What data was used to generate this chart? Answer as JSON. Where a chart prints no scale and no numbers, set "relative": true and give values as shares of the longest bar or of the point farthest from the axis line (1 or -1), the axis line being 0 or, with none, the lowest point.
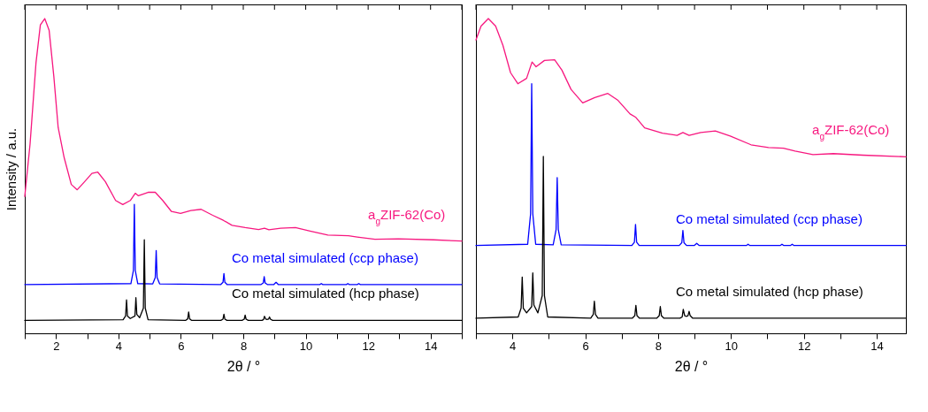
{
  "chart_data": [
    {
      "type": "line",
      "relative": true,
      "xlim": [
        1,
        15
      ],
      "xticks": [
        {
          "value": 1,
          "label": null
        },
        2,
        {
          "value": 3,
          "label": null
        },
        4,
        {
          "value": 5,
          "label": null
        },
        6,
        {
          "value": 7,
          "label": null
        },
        8,
        {
          "value": 9,
          "label": null
        },
        10,
        {
          "value": 11,
          "label": null
        },
        12,
        {
          "value": 13,
          "label": null
        },
        14,
        {
          "value": 15,
          "label": null
        }
      ],
      "xlabel": "2θ / °",
      "ylabel": "Intensity / a.u.",
      "tick_labels": "x",
      "grid": false,
      "legend": false,
      "line_style": "solid",
      "series": [
        {
          "name": "a$_{g}$ZIF-62(Co)",
          "color": "#f7177f",
          "x": [
            1.0,
            1.17,
            1.36,
            1.5,
            1.64,
            1.78,
            1.93,
            2.07,
            2.26,
            2.49,
            2.68,
            2.92,
            3.15,
            3.34,
            3.58,
            3.91,
            4.14,
            4.38,
            4.54,
            4.64,
            4.95,
            5.18,
            5.42,
            5.7,
            5.99,
            6.32,
            6.65,
            7.02,
            7.36,
            7.64,
            8.06,
            8.49,
            8.68,
            8.82,
            9.2,
            9.67,
            10.14,
            10.71,
            11.37,
            11.65,
            12.22,
            12.97,
            14.1,
            15.0
          ],
          "values": [
            0.435,
            0.602,
            0.86,
            0.98,
            1.0,
            0.963,
            0.817,
            0.654,
            0.559,
            0.473,
            0.456,
            0.482,
            0.508,
            0.512,
            0.482,
            0.422,
            0.409,
            0.422,
            0.445,
            0.437,
            0.448,
            0.448,
            0.422,
            0.387,
            0.381,
            0.39,
            0.394,
            0.375,
            0.359,
            0.343,
            0.336,
            0.33,
            0.334,
            0.329,
            0.334,
            0.336,
            0.325,
            0.312,
            0.31,
            0.306,
            0.299,
            0.3,
            0.297,
            0.293
          ]
        },
        {
          "name": "Co metal simulated (ccp phase)",
          "color": "#0000ff",
          "x": [
            1,
            4.4,
            4.48,
            4.51,
            4.54,
            4.62,
            5.1,
            5.18,
            5.21,
            5.24,
            5.32,
            7.28,
            7.35,
            7.38,
            7.41,
            7.48,
            8.57,
            8.64,
            8.67,
            8.7,
            8.77,
            8.98,
            9.05,
            9.12,
            10.45,
            10.5,
            10.55,
            11.3,
            11.35,
            11.4,
            11.65,
            11.7,
            11.75,
            15
          ],
          "values": [
            0.155,
            0.158,
            0.2,
            0.41,
            0.2,
            0.158,
            0.157,
            0.177,
            0.263,
            0.177,
            0.157,
            0.155,
            0.162,
            0.19,
            0.162,
            0.155,
            0.155,
            0.16,
            0.18,
            0.16,
            0.155,
            0.155,
            0.162,
            0.155,
            0.155,
            0.158,
            0.155,
            0.155,
            0.158,
            0.155,
            0.155,
            0.158,
            0.155,
            0.155
          ]
        },
        {
          "name": "Co metal simulated (hcp phase)",
          "color": "#000000",
          "x": [
            1,
            4.15,
            4.23,
            4.26,
            4.29,
            4.38,
            4.53,
            4.56,
            4.59,
            4.68,
            4.8,
            4.83,
            4.86,
            4.95,
            6.15,
            6.22,
            6.25,
            6.28,
            6.35,
            7.28,
            7.35,
            7.38,
            7.41,
            7.48,
            7.96,
            8.03,
            8.06,
            8.09,
            8.16,
            8.6,
            8.65,
            8.68,
            8.72,
            8.76,
            8.81,
            8.84,
            8.87,
            8.94,
            15
          ],
          "values": [
            0.041,
            0.043,
            0.055,
            0.106,
            0.055,
            0.047,
            0.055,
            0.113,
            0.06,
            0.05,
            0.08,
            0.297,
            0.08,
            0.043,
            0.041,
            0.046,
            0.068,
            0.046,
            0.041,
            0.041,
            0.045,
            0.061,
            0.045,
            0.041,
            0.041,
            0.045,
            0.058,
            0.045,
            0.041,
            0.041,
            0.044,
            0.054,
            0.045,
            0.044,
            0.045,
            0.052,
            0.045,
            0.041,
            0.041
          ]
        }
      ]
    },
    {
      "type": "line",
      "relative": true,
      "xlim": [
        3,
        14.8
      ],
      "xticks": [
        {
          "value": 3,
          "label": null
        },
        4,
        {
          "value": 5,
          "label": null
        },
        6,
        {
          "value": 7,
          "label": null
        },
        8,
        {
          "value": 9,
          "label": null
        },
        10,
        {
          "value": 11,
          "label": null
        },
        12,
        {
          "value": 13,
          "label": null
        },
        14
      ],
      "xlabel": "2θ / °",
      "tick_labels": "x",
      "grid": false,
      "legend": false,
      "line_style": "solid",
      "series": [
        {
          "name": "a$_{g}$ZIF-62(Co)",
          "color": "#f7177f",
          "x": [
            3.0,
            3.14,
            3.34,
            3.54,
            3.74,
            3.95,
            4.15,
            4.39,
            4.54,
            4.65,
            4.88,
            5.16,
            5.36,
            5.61,
            5.93,
            6.26,
            6.62,
            6.9,
            7.23,
            7.39,
            7.63,
            8.12,
            8.52,
            8.68,
            8.85,
            9.17,
            9.57,
            9.98,
            10.55,
            11.03,
            11.44,
            11.76,
            12.25,
            12.81,
            13.62,
            14.8
          ],
          "values": [
            0.932,
            0.976,
            1.0,
            0.976,
            0.915,
            0.828,
            0.793,
            0.81,
            0.862,
            0.847,
            0.867,
            0.869,
            0.836,
            0.775,
            0.732,
            0.749,
            0.762,
            0.74,
            0.697,
            0.686,
            0.653,
            0.636,
            0.629,
            0.638,
            0.629,
            0.638,
            0.643,
            0.627,
            0.599,
            0.59,
            0.588,
            0.579,
            0.568,
            0.571,
            0.566,
            0.561
          ]
        },
        {
          "name": "Co metal simulated (ccp phase)",
          "color": "#0000ff",
          "x": [
            3,
            4.42,
            4.5,
            4.53,
            4.56,
            4.64,
            5.12,
            5.2,
            5.23,
            5.26,
            5.34,
            7.28,
            7.35,
            7.38,
            7.41,
            7.48,
            8.58,
            8.65,
            8.68,
            8.71,
            8.78,
            8.99,
            9.06,
            9.13,
            10.42,
            10.47,
            10.52,
            11.35,
            11.4,
            11.45,
            11.63,
            11.68,
            11.73,
            14.8
          ],
          "values": [
            0.279,
            0.283,
            0.38,
            0.793,
            0.38,
            0.283,
            0.281,
            0.33,
            0.495,
            0.33,
            0.281,
            0.279,
            0.29,
            0.346,
            0.29,
            0.279,
            0.279,
            0.288,
            0.327,
            0.288,
            0.279,
            0.279,
            0.286,
            0.279,
            0.279,
            0.283,
            0.279,
            0.279,
            0.283,
            0.279,
            0.279,
            0.283,
            0.279,
            0.279
          ]
        },
        {
          "name": "Co metal simulated (hcp phase)",
          "color": "#000000",
          "x": [
            3,
            4.16,
            4.24,
            4.27,
            4.3,
            4.39,
            4.53,
            4.56,
            4.59,
            4.7,
            4.82,
            4.85,
            4.88,
            4.97,
            6.15,
            6.22,
            6.25,
            6.28,
            6.35,
            7.29,
            7.36,
            7.39,
            7.42,
            7.49,
            7.96,
            8.03,
            8.06,
            8.09,
            8.16,
            8.6,
            8.66,
            8.69,
            8.73,
            8.77,
            8.82,
            8.85,
            8.88,
            8.95,
            14.8
          ],
          "values": [
            0.048,
            0.052,
            0.08,
            0.179,
            0.08,
            0.065,
            0.085,
            0.192,
            0.09,
            0.065,
            0.12,
            0.562,
            0.12,
            0.052,
            0.048,
            0.06,
            0.102,
            0.06,
            0.048,
            0.048,
            0.056,
            0.089,
            0.056,
            0.048,
            0.048,
            0.056,
            0.085,
            0.056,
            0.048,
            0.048,
            0.052,
            0.076,
            0.056,
            0.054,
            0.056,
            0.07,
            0.056,
            0.048,
            0.048
          ]
        }
      ]
    }
  ]
}
